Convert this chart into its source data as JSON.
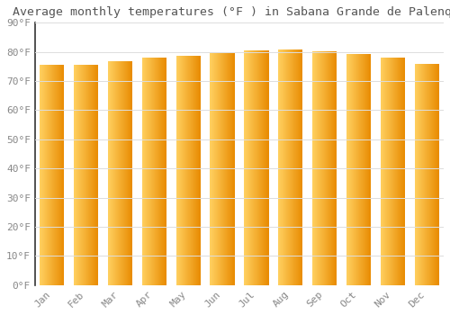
{
  "title": "Average monthly temperatures (°F ) in Sabana Grande de Palenque",
  "months": [
    "Jan",
    "Feb",
    "Mar",
    "Apr",
    "May",
    "Jun",
    "Jul",
    "Aug",
    "Sep",
    "Oct",
    "Nov",
    "Dec"
  ],
  "values": [
    75.5,
    75.5,
    76.7,
    78.1,
    78.8,
    79.7,
    80.4,
    80.7,
    80.1,
    79.3,
    78.1,
    75.9
  ],
  "bar_color_left": "#FFD060",
  "bar_color_right": "#E88A00",
  "background_color": "#ffffff",
  "grid_color": "#dddddd",
  "text_color": "#888888",
  "title_color": "#555555",
  "spine_color": "#333333",
  "ylim": [
    0,
    90
  ],
  "yticks": [
    0,
    10,
    20,
    30,
    40,
    50,
    60,
    70,
    80,
    90
  ],
  "ytick_labels": [
    "0°F",
    "10°F",
    "20°F",
    "30°F",
    "40°F",
    "50°F",
    "60°F",
    "70°F",
    "80°F",
    "90°F"
  ],
  "font_family": "monospace",
  "title_fontsize": 9.5,
  "tick_fontsize": 8
}
